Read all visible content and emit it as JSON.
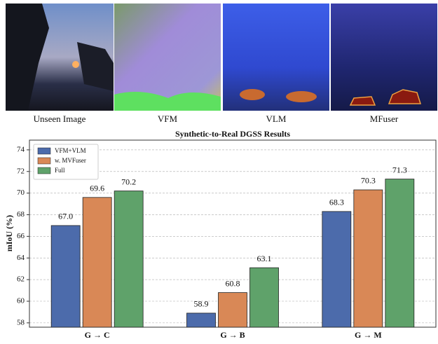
{
  "image_captions": [
    "Unseen Image",
    "VFM",
    "VLM",
    "MFuser"
  ],
  "chart_data": {
    "type": "bar",
    "title": "Synthetic-to-Real DGSS Results",
    "y_label": "mIoU (%)",
    "categories": [
      "G → C",
      "G → B",
      "G → M"
    ],
    "series": [
      {
        "name": "VFM+VLM",
        "color": "#4c6bab",
        "values": [
          67.0,
          58.9,
          68.3
        ],
        "value_labels": [
          "67.0",
          "58.9",
          "68.3"
        ]
      },
      {
        "name": "w. MVFuser",
        "color": "#d98856",
        "values": [
          69.6,
          60.8,
          70.3
        ],
        "value_labels": [
          "69.6",
          "60.8",
          "70.3"
        ]
      },
      {
        "name": "Full",
        "color": "#5fa26a",
        "values": [
          70.2,
          63.1,
          71.3
        ],
        "value_labels": [
          "70.2",
          "63.1",
          "71.3"
        ]
      }
    ],
    "ylim": [
      57.6,
      74.9
    ],
    "yticks": [
      58,
      60,
      62,
      64,
      66,
      68,
      70,
      72,
      74
    ],
    "grid": true,
    "legend": "upper-left"
  }
}
